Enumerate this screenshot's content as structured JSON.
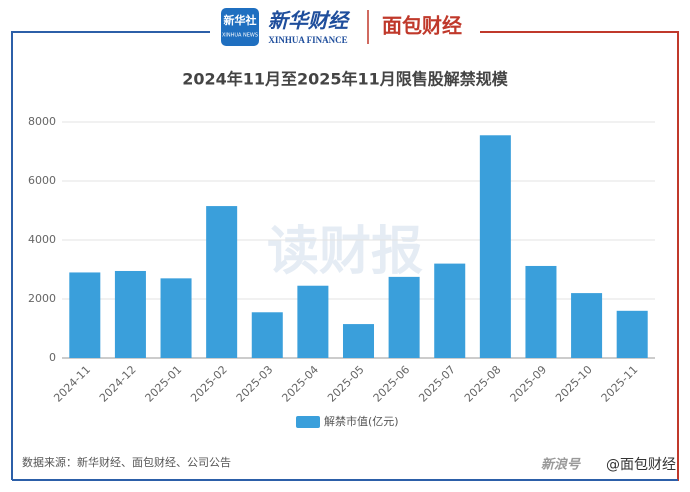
{
  "header": {
    "xinhua_logo": "新华社",
    "xinhua_logo_en": "XINHUA NEWS",
    "brand": "新华财经",
    "brand_en": "XINHUA FINANCE",
    "partner": "面包财经"
  },
  "chart_data": {
    "type": "bar",
    "title": "2024年11月至2025年11月限售股解禁规模",
    "categories": [
      "2024-11",
      "2024-12",
      "2025-01",
      "2025-02",
      "2025-03",
      "2025-04",
      "2025-05",
      "2025-06",
      "2025-07",
      "2025-08",
      "2025-09",
      "2025-10",
      "2025-11"
    ],
    "series": [
      {
        "name": "解禁市值(亿元)",
        "color": "#3a9fdb",
        "values": [
          2900,
          2950,
          2700,
          5150,
          1550,
          2450,
          1150,
          2750,
          3200,
          7550,
          3120,
          2200,
          1600
        ]
      }
    ],
    "ylim": [
      0,
      8000
    ],
    "yticks": [
      0,
      2000,
      4000,
      6000,
      8000
    ],
    "grid": true,
    "legend": "bottom"
  },
  "watermark": "读财报",
  "source": "数据来源：新华财经、面包财经、公司公告",
  "credit": {
    "platform": "新浪号",
    "account": "@面包财经"
  }
}
